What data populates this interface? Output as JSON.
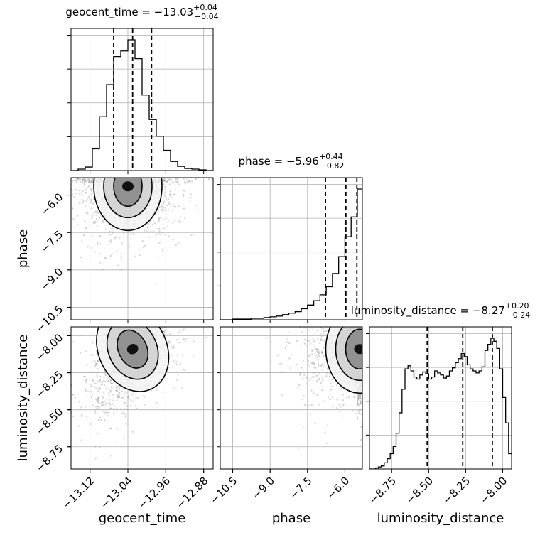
{
  "chart_data": {
    "type": "corner",
    "parameters": [
      "geocent_time",
      "phase",
      "luminosity_distance"
    ],
    "titles": {
      "geocent_time": {
        "prefix": "geocent_time = ",
        "median": "−13.03",
        "plus": "+0.04",
        "minus": "−0.04"
      },
      "phase": {
        "prefix": "phase = ",
        "median": "−5.96",
        "plus": "+0.44",
        "minus": "−0.82"
      },
      "luminosity_distance": {
        "prefix": "luminosity_distance = ",
        "median": "−8.27",
        "plus": "+0.20",
        "minus": "−0.24"
      }
    },
    "ranges": {
      "geocent_time": [
        -13.16,
        -12.86
      ],
      "phase": [
        -11.0,
        -5.3
      ],
      "luminosity_distance": [
        -8.9,
        -7.94
      ]
    },
    "ticks": {
      "geocent_time": {
        "values": [
          -13.12,
          -13.04,
          -12.96,
          -12.88
        ],
        "labels": [
          "−13.12",
          "−13.04",
          "−12.96",
          "−12.88"
        ]
      },
      "phase": {
        "values": [
          -10.5,
          -9.0,
          -7.5,
          -6.0
        ],
        "labels": [
          "−10.5",
          "−9.0",
          "−7.5",
          "−6.0"
        ]
      },
      "luminosity_distance": {
        "values": [
          -8.75,
          -8.5,
          -8.25,
          -8.0
        ],
        "labels": [
          "−8.75",
          "−8.50",
          "−8.25",
          "−8.00"
        ]
      }
    },
    "histograms": {
      "geocent_time": {
        "bin_edges": [
          -13.16,
          -13.145,
          -13.13,
          -13.115,
          -13.1,
          -13.085,
          -13.07,
          -13.055,
          -13.04,
          -13.025,
          -13.01,
          -12.995,
          -12.98,
          -12.965,
          -12.95,
          -12.935,
          -12.92,
          -12.905,
          -12.89,
          -12.875,
          -12.86
        ],
        "counts": [
          0,
          2,
          5,
          31,
          77,
          123,
          163,
          171,
          187,
          160,
          108,
          73,
          49,
          29,
          13,
          6,
          3,
          2,
          1,
          0
        ],
        "quantiles": [
          -13.07,
          -13.03,
          -12.99
        ]
      },
      "phase": {
        "bin_edges": [
          -11.0,
          -10.75,
          -10.5,
          -10.25,
          -10.0,
          -9.75,
          -9.5,
          -9.25,
          -9.0,
          -8.75,
          -8.5,
          -8.25,
          -8.0,
          -7.75,
          -7.5,
          -7.25,
          -7.0,
          -6.75,
          -6.5,
          -6.25,
          -6.0,
          -5.75,
          -5.5,
          -5.3
        ],
        "counts": [
          0,
          0,
          1,
          1,
          1,
          2,
          2,
          3,
          4,
          5,
          7,
          9,
          11,
          15,
          20,
          26,
          34,
          45,
          63,
          86,
          113,
          140,
          178
        ],
        "quantiles": [
          -6.78,
          -5.96,
          -5.52
        ]
      },
      "luminosity_distance": {
        "bin_edges": [
          -8.9,
          -8.88,
          -8.86,
          -8.84,
          -8.82,
          -8.8,
          -8.78,
          -8.76,
          -8.74,
          -8.72,
          -8.7,
          -8.68,
          -8.66,
          -8.64,
          -8.62,
          -8.6,
          -8.58,
          -8.56,
          -8.54,
          -8.52,
          -8.5,
          -8.48,
          -8.46,
          -8.44,
          -8.42,
          -8.4,
          -8.38,
          -8.36,
          -8.34,
          -8.32,
          -8.3,
          -8.28,
          -8.26,
          -8.24,
          -8.22,
          -8.2,
          -8.18,
          -8.16,
          -8.14,
          -8.12,
          -8.1,
          -8.08,
          -8.06,
          -8.04,
          -8.02,
          -8.0,
          -7.98,
          -7.96,
          -7.94
        ],
        "counts": [
          0,
          0,
          1,
          2,
          3,
          6,
          10,
          15,
          22,
          35,
          55,
          78,
          98,
          101,
          96,
          90,
          88,
          92,
          95,
          93,
          88,
          90,
          96,
          94,
          92,
          89,
          91,
          96,
          99,
          104,
          108,
          113,
          110,
          102,
          98,
          96,
          94,
          96,
          100,
          116,
          122,
          128,
          125,
          118,
          98,
          70,
          45,
          15
        ],
        "quantiles": [
          -8.51,
          -8.27,
          -8.07
        ]
      }
    },
    "density_modes": {
      "phase_vs_geocent_time": {
        "x": -13.04,
        "y": -5.65
      },
      "luminosity_distance_vs_geocent_time": {
        "x": -13.03,
        "y": -8.09
      },
      "luminosity_distance_vs_phase": {
        "x": -5.4,
        "y": -8.09
      }
    },
    "grid": true
  }
}
